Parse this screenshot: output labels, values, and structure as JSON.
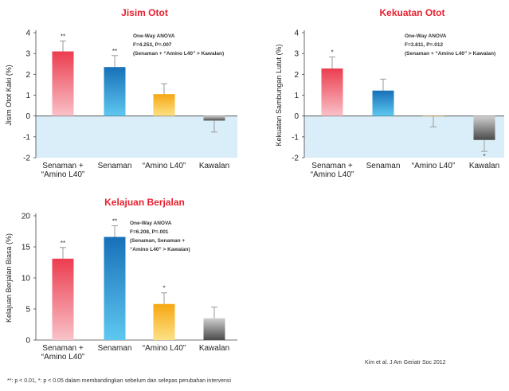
{
  "series_colors": {
    "red": "#ef4a5a",
    "blue": "#1b7fc4",
    "yellow": "#f5b41c",
    "gray": "#6e6e6e",
    "title": "#e8202f",
    "shade": "#d9eef9"
  },
  "chart_data": [
    {
      "type": "bar",
      "title": "Jisim Otot",
      "ylabel": "Jisim Otot Kaki (%)",
      "xlabel": "",
      "ylim": [
        -2,
        4
      ],
      "yticks": [
        -2,
        -1,
        0,
        1,
        2,
        3,
        4
      ],
      "categories": [
        [
          "Senaman +",
          "“Amino L40”"
        ],
        [
          "Senaman"
        ],
        [
          "“Amino L40”"
        ],
        [
          "Kawalan"
        ]
      ],
      "values": [
        3.1,
        2.35,
        1.05,
        -0.22
      ],
      "errors": [
        0.5,
        0.55,
        0.5,
        0.55
      ],
      "significance": [
        "**",
        "**",
        "",
        ""
      ],
      "annotation": [
        "One-Way ANOVA",
        "F=4.253, P=.007",
        "(Senaman + “Amino L40” > Kawalan)"
      ]
    },
    {
      "type": "bar",
      "title": "Kekuatan Otot",
      "ylabel": "Kekuatan Sambungan Lutut (%)",
      "xlabel": "",
      "ylim": [
        -2,
        4
      ],
      "yticks": [
        -2,
        -1,
        0,
        1,
        2,
        3,
        4
      ],
      "categories": [
        [
          "Senaman +",
          "“Amino L40”"
        ],
        [
          "Senaman"
        ],
        [
          "“Amino L40”"
        ],
        [
          "Kawalan"
        ]
      ],
      "values": [
        2.28,
        1.22,
        -0.02,
        -1.15
      ],
      "errors": [
        0.55,
        0.55,
        0.5,
        0.55
      ],
      "significance": [
        "*",
        "",
        "",
        "*"
      ],
      "annotation": [
        "One-Way ANOVA",
        "F=3.811, P=.012",
        "(Senaman + “Amino L40” > Kawalan)"
      ]
    },
    {
      "type": "bar",
      "title": "Kelajuan Berjalan",
      "ylabel": "Kelajuan Berjalan Biasa (%)",
      "xlabel": "",
      "ylim": [
        0,
        20
      ],
      "yticks": [
        0,
        5,
        10,
        15,
        20
      ],
      "categories": [
        [
          "Senaman +",
          "“Amino L40”"
        ],
        [
          "Senaman"
        ],
        [
          "“Amino L40”"
        ],
        [
          "Kawalan"
        ]
      ],
      "values": [
        13.1,
        16.6,
        5.8,
        3.5
      ],
      "errors": [
        1.8,
        1.8,
        1.8,
        1.8
      ],
      "significance": [
        "**",
        "**",
        "*",
        ""
      ],
      "annotation": [
        "One-Way ANOVA",
        "F=6.208, P=.001",
        "(Senaman, Senaman +",
        "“Amino L40” > Kawalan)"
      ]
    }
  ],
  "citation": "Kim et al. J Am Geriatr Soc 2012",
  "footnote": "**: p < 0.01, *: p < 0.05  dalam membandingkan sebelum dan selepas perubahan intervensi"
}
